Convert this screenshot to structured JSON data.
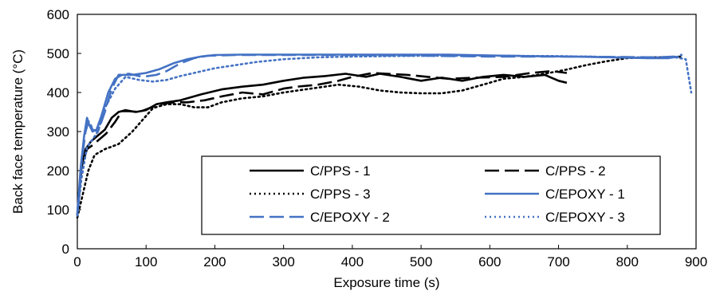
{
  "chart_data": {
    "type": "line",
    "title": "",
    "xlabel": "Exposure time (s)",
    "ylabel": "Back face temperature (°C)",
    "xlim": [
      0,
      900
    ],
    "ylim": [
      0,
      600
    ],
    "xticks": [
      0,
      100,
      200,
      300,
      400,
      500,
      600,
      700,
      800,
      900
    ],
    "yticks": [
      0,
      100,
      200,
      300,
      400,
      500,
      600
    ],
    "grid": false,
    "legend_position": "lower-right",
    "series": [
      {
        "name": "C/PPS - 1",
        "color": "#000000",
        "dash": "solid",
        "points": [
          [
            0,
            85
          ],
          [
            5,
            200
          ],
          [
            12,
            255
          ],
          [
            20,
            275
          ],
          [
            30,
            290
          ],
          [
            40,
            305
          ],
          [
            50,
            335
          ],
          [
            60,
            350
          ],
          [
            70,
            355
          ],
          [
            85,
            350
          ],
          [
            100,
            355
          ],
          [
            115,
            370
          ],
          [
            130,
            375
          ],
          [
            150,
            380
          ],
          [
            180,
            395
          ],
          [
            210,
            408
          ],
          [
            240,
            415
          ],
          [
            270,
            420
          ],
          [
            300,
            430
          ],
          [
            330,
            438
          ],
          [
            360,
            442
          ],
          [
            390,
            448
          ],
          [
            420,
            440
          ],
          [
            440,
            448
          ],
          [
            470,
            440
          ],
          [
            500,
            430
          ],
          [
            530,
            438
          ],
          [
            560,
            430
          ],
          [
            590,
            440
          ],
          [
            620,
            445
          ],
          [
            650,
            440
          ],
          [
            680,
            445
          ],
          [
            700,
            430
          ],
          [
            712,
            425
          ]
        ]
      },
      {
        "name": "C/PPS - 2",
        "color": "#000000",
        "dash": "long-dash",
        "points": [
          [
            0,
            85
          ],
          [
            6,
            210
          ],
          [
            14,
            255
          ],
          [
            22,
            265
          ],
          [
            32,
            280
          ],
          [
            42,
            295
          ],
          [
            55,
            325
          ],
          [
            65,
            352
          ],
          [
            75,
            352
          ],
          [
            90,
            350
          ],
          [
            105,
            360
          ],
          [
            120,
            370
          ],
          [
            140,
            375
          ],
          [
            160,
            375
          ],
          [
            185,
            380
          ],
          [
            210,
            390
          ],
          [
            240,
            400
          ],
          [
            270,
            395
          ],
          [
            300,
            410
          ],
          [
            320,
            415
          ],
          [
            350,
            420
          ],
          [
            380,
            430
          ],
          [
            400,
            440
          ],
          [
            430,
            450
          ],
          [
            450,
            448
          ],
          [
            480,
            445
          ],
          [
            510,
            440
          ],
          [
            540,
            435
          ],
          [
            580,
            438
          ],
          [
            620,
            440
          ],
          [
            660,
            450
          ],
          [
            690,
            455
          ],
          [
            712,
            450
          ]
        ]
      },
      {
        "name": "C/PPS - 3",
        "color": "#000000",
        "dash": "dot",
        "points": [
          [
            0,
            80
          ],
          [
            8,
            140
          ],
          [
            16,
            200
          ],
          [
            25,
            240
          ],
          [
            40,
            255
          ],
          [
            60,
            268
          ],
          [
            80,
            300
          ],
          [
            95,
            330
          ],
          [
            110,
            360
          ],
          [
            130,
            370
          ],
          [
            150,
            370
          ],
          [
            170,
            362
          ],
          [
            190,
            362
          ],
          [
            210,
            375
          ],
          [
            240,
            385
          ],
          [
            270,
            390
          ],
          [
            300,
            400
          ],
          [
            340,
            410
          ],
          [
            380,
            420
          ],
          [
            410,
            415
          ],
          [
            440,
            405
          ],
          [
            470,
            400
          ],
          [
            500,
            398
          ],
          [
            530,
            398
          ],
          [
            560,
            405
          ],
          [
            590,
            420
          ],
          [
            620,
            435
          ],
          [
            650,
            440
          ],
          [
            680,
            448
          ],
          [
            710,
            458
          ],
          [
            740,
            470
          ],
          [
            770,
            480
          ],
          [
            800,
            488
          ],
          [
            830,
            490
          ],
          [
            860,
            490
          ],
          [
            880,
            492
          ]
        ]
      },
      {
        "name": "C/EPOXY - 1",
        "color": "#4472C4",
        "dash": "solid",
        "points": [
          [
            0,
            90
          ],
          [
            5,
            210
          ],
          [
            10,
            290
          ],
          [
            14,
            335
          ],
          [
            18,
            315
          ],
          [
            22,
            300
          ],
          [
            28,
            305
          ],
          [
            35,
            340
          ],
          [
            45,
            400
          ],
          [
            55,
            435
          ],
          [
            65,
            445
          ],
          [
            80,
            445
          ],
          [
            100,
            450
          ],
          [
            120,
            460
          ],
          [
            140,
            475
          ],
          [
            160,
            485
          ],
          [
            180,
            492
          ],
          [
            200,
            496
          ],
          [
            240,
            497
          ],
          [
            300,
            497
          ],
          [
            360,
            497
          ],
          [
            420,
            497
          ],
          [
            480,
            497
          ],
          [
            540,
            497
          ],
          [
            600,
            495
          ],
          [
            660,
            493
          ],
          [
            720,
            492
          ],
          [
            780,
            490
          ],
          [
            830,
            488
          ],
          [
            860,
            488
          ],
          [
            875,
            492
          ]
        ]
      },
      {
        "name": "C/EPOXY - 2",
        "color": "#4472C4",
        "dash": "long-dash",
        "points": [
          [
            0,
            90
          ],
          [
            6,
            220
          ],
          [
            12,
            300
          ],
          [
            17,
            330
          ],
          [
            22,
            305
          ],
          [
            30,
            300
          ],
          [
            40,
            350
          ],
          [
            50,
            410
          ],
          [
            60,
            445
          ],
          [
            75,
            448
          ],
          [
            95,
            440
          ],
          [
            115,
            445
          ],
          [
            130,
            455
          ],
          [
            150,
            475
          ],
          [
            170,
            488
          ],
          [
            190,
            494
          ],
          [
            230,
            496
          ],
          [
            300,
            496
          ],
          [
            400,
            496
          ],
          [
            500,
            494
          ],
          [
            600,
            492
          ],
          [
            700,
            492
          ],
          [
            780,
            491
          ],
          [
            840,
            490
          ],
          [
            870,
            492
          ],
          [
            880,
            497
          ]
        ]
      },
      {
        "name": "C/EPOXY - 3",
        "color": "#4472C4",
        "dash": "dot",
        "points": [
          [
            0,
            85
          ],
          [
            6,
            180
          ],
          [
            14,
            260
          ],
          [
            22,
            280
          ],
          [
            30,
            300
          ],
          [
            40,
            360
          ],
          [
            55,
            410
          ],
          [
            70,
            440
          ],
          [
            90,
            432
          ],
          [
            110,
            428
          ],
          [
            130,
            432
          ],
          [
            150,
            442
          ],
          [
            175,
            452
          ],
          [
            200,
            462
          ],
          [
            230,
            470
          ],
          [
            260,
            478
          ],
          [
            300,
            485
          ],
          [
            350,
            490
          ],
          [
            400,
            492
          ],
          [
            500,
            494
          ],
          [
            600,
            494
          ],
          [
            700,
            493
          ],
          [
            800,
            490
          ],
          [
            870,
            490
          ],
          [
            885,
            485
          ],
          [
            893,
            400
          ]
        ]
      }
    ]
  }
}
